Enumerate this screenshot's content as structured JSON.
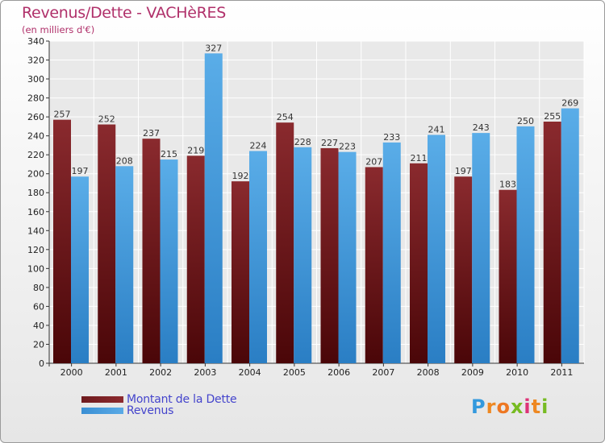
{
  "header": {
    "title": "Revenus/Dette - VACHèRES",
    "subtitle": "(en milliers d'€)"
  },
  "legend": {
    "dette_label": "Montant de la Dette",
    "revenus_label": "Revenus"
  },
  "logo": {
    "text": "Proxiti",
    "letter_colors": [
      "#3399dd",
      "#ee8822",
      "#ee7722",
      "#77bb22",
      "#dd3377",
      "#ee8822",
      "#77bb22"
    ]
  },
  "colors": {
    "dette": "#6e1a1e",
    "revenus": "#3a8fd4"
  },
  "chart_data": {
    "type": "bar",
    "title": "Revenus/Dette - VACHèRES",
    "subtitle": "(en milliers d'€)",
    "categories": [
      "2000",
      "2001",
      "2002",
      "2003",
      "2004",
      "2005",
      "2006",
      "2007",
      "2008",
      "2009",
      "2010",
      "2011"
    ],
    "series": [
      {
        "name": "Montant de la Dette",
        "values": [
          257,
          252,
          237,
          219,
          192,
          254,
          227,
          207,
          211,
          197,
          183,
          255
        ]
      },
      {
        "name": "Revenus",
        "values": [
          197,
          208,
          215,
          327,
          224,
          228,
          223,
          233,
          241,
          243,
          250,
          269
        ]
      }
    ],
    "ylim": [
      0,
      340
    ],
    "yticks": [
      0,
      20,
      40,
      60,
      80,
      100,
      120,
      140,
      160,
      180,
      200,
      220,
      240,
      260,
      280,
      300,
      320,
      340
    ],
    "grid": true,
    "legend_position": "bottom-left"
  }
}
